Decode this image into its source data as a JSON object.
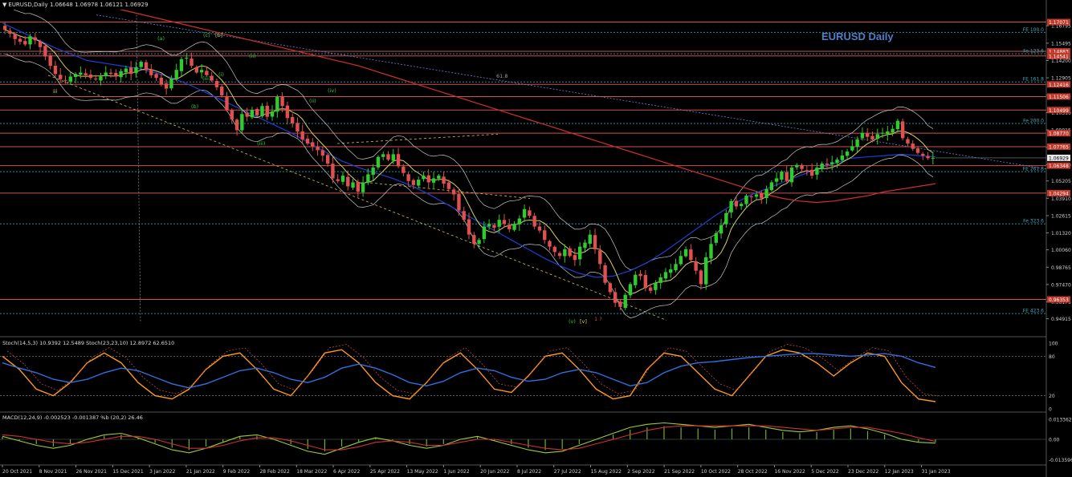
{
  "header": {
    "symbol": "EURUSD,Daily",
    "ohlc": "1.06648 1.06978 1.06121 1.06929"
  },
  "watermark": "EURUSD Daily",
  "colors": {
    "background": "#000000",
    "bull": "#2ecc2e",
    "bear": "#e05050",
    "ma_slow": "#d03030",
    "ma_blue": "#1c3fd6",
    "ma_yellow": "#d6d060",
    "bands": "#c8c8c8",
    "level_line": "#d05050",
    "fib_line": "#2a8a9a"
  },
  "chart_data": [
    {
      "type": "candlestick",
      "title": "EURUSD Daily",
      "xlabel": "",
      "ylabel": "",
      "x_ticks": [
        "20 Oct 2021",
        "8 Nov 2021",
        "26 Nov 2021",
        "15 Dec 2021",
        "3 Jan 2022",
        "21 Jan 2022",
        "9 Feb 2022",
        "28 Feb 2022",
        "18 Mar 2022",
        "6 Apr 2022",
        "25 Apr 2022",
        "13 May 2022",
        "1 Jun 2022",
        "20 Jun 2022",
        "8 Jul 2022",
        "27 Jul 2022",
        "15 Aug 2022",
        "2 Sep 2022",
        "21 Sep 2022",
        "10 Oct 2022",
        "28 Oct 2022",
        "16 Nov 2022",
        "5 Dec 2022",
        "23 Dec 2022",
        "12 Jan 2023",
        "31 Jan 2023"
      ],
      "y_ticks": [
        "1.16795",
        "1.15495",
        "1.14200",
        "1.12905",
        "1.11605",
        "1.10310",
        "1.09015",
        "1.07715",
        "1.06420",
        "1.05205",
        "1.03910",
        "1.02615",
        "1.01320",
        "1.00060",
        "0.98765",
        "0.97470",
        "0.96175",
        "0.94915"
      ],
      "ylim": [
        0.9435,
        1.18
      ],
      "last_price": "1.06929",
      "close_series": [
        1.165,
        1.162,
        1.158,
        1.156,
        1.154,
        1.16,
        1.157,
        1.152,
        1.145,
        1.138,
        1.132,
        1.128,
        1.127,
        1.13,
        1.132,
        1.133,
        1.131,
        1.129,
        1.128,
        1.13,
        1.133,
        1.132,
        1.13,
        1.134,
        1.136,
        1.132,
        1.137,
        1.141,
        1.135,
        1.131,
        1.129,
        1.124,
        1.121,
        1.128,
        1.135,
        1.143,
        1.144,
        1.138,
        1.133,
        1.135,
        1.131,
        1.127,
        1.122,
        1.116,
        1.105,
        1.098,
        1.09,
        1.102,
        1.1,
        1.105,
        1.101,
        1.108,
        1.1,
        1.104,
        1.115,
        1.108,
        1.099,
        1.095,
        1.089,
        1.083,
        1.08,
        1.078,
        1.075,
        1.071,
        1.065,
        1.054,
        1.052,
        1.056,
        1.048,
        1.051,
        1.044,
        1.051,
        1.057,
        1.062,
        1.07,
        1.072,
        1.068,
        1.072,
        1.063,
        1.058,
        1.052,
        1.049,
        1.053,
        1.056,
        1.051,
        1.054,
        1.056,
        1.05,
        1.046,
        1.042,
        1.03,
        1.023,
        1.012,
        1.005,
        1.008,
        1.018,
        1.02,
        1.017,
        1.023,
        1.02,
        1.016,
        1.02,
        1.024,
        1.031,
        1.026,
        1.018,
        1.015,
        1.008,
        1.003,
        0.999,
        0.996,
        1.001,
        0.996,
        0.993,
        1.003,
        1.006,
        1.012,
        1.001,
        0.99,
        0.976,
        0.969,
        0.961,
        0.958,
        0.967,
        0.975,
        0.982,
        0.981,
        0.972,
        0.97,
        0.976,
        0.98,
        0.984,
        0.986,
        0.99,
        0.996,
        1.001,
        0.993,
        0.985,
        0.975,
        0.995,
        1.005,
        1.013,
        1.019,
        1.028,
        1.037,
        1.033,
        1.035,
        1.041,
        1.04,
        1.042,
        1.039,
        1.046,
        1.051,
        1.054,
        1.059,
        1.052,
        1.062,
        1.064,
        1.061,
        1.06,
        1.056,
        1.062,
        1.065,
        1.064,
        1.066,
        1.068,
        1.071,
        1.074,
        1.078,
        1.083,
        1.088,
        1.085,
        1.083,
        1.087,
        1.088,
        1.089,
        1.091,
        1.097,
        1.084,
        1.08,
        1.076,
        1.073,
        1.071,
        1.069,
        1.0693
      ],
      "ma_red": [
        1.195,
        1.193,
        1.191,
        1.189,
        1.187,
        1.185,
        1.183,
        1.18,
        1.177,
        1.174,
        1.171,
        1.168,
        1.165,
        1.162,
        1.159,
        1.156,
        1.153,
        1.15,
        1.147,
        1.144,
        1.141,
        1.138,
        1.134,
        1.13,
        1.126,
        1.122,
        1.118,
        1.114,
        1.11,
        1.106,
        1.102,
        1.098,
        1.094,
        1.09,
        1.086,
        1.082,
        1.078,
        1.074,
        1.07,
        1.066,
        1.062,
        1.058,
        1.054,
        1.05,
        1.046,
        1.042,
        1.039,
        1.037,
        1.036,
        1.037,
        1.039,
        1.041,
        1.044,
        1.046,
        1.048,
        1.05
      ],
      "ma_blue": [
        1.17,
        1.164,
        1.158,
        1.152,
        1.147,
        1.142,
        1.14,
        1.138,
        1.136,
        1.133,
        1.129,
        1.124,
        1.118,
        1.112,
        1.106,
        1.1,
        1.094,
        1.088,
        1.081,
        1.074,
        1.067,
        1.062,
        1.058,
        1.054,
        1.049,
        1.043,
        1.036,
        1.029,
        1.022,
        1.015,
        1.008,
        1.001,
        0.994,
        0.988,
        0.983,
        0.98,
        0.981,
        0.985,
        0.991,
        0.999,
        1.008,
        1.017,
        1.026,
        1.034,
        1.041,
        1.046,
        1.051,
        1.056,
        1.061,
        1.065,
        1.069,
        1.07,
        1.071,
        1.072,
        1.071,
        1.07
      ],
      "h_levels": [
        {
          "price": "1.17071",
          "style": "solid",
          "color": "#d05050"
        },
        {
          "price": "1.16300",
          "label": "FE 100.0",
          "style": "dotted",
          "color": "#2a8a9a"
        },
        {
          "price": "1.14883",
          "style": "solid",
          "color": "#d05050"
        },
        {
          "price": "1.14541",
          "style": "solid",
          "color": "#d05050"
        },
        {
          "price": "1.14700",
          "label": "Fe 123.6",
          "style": "dotted",
          "color": "#2a8a9a"
        },
        {
          "price": "1.12416",
          "style": "solid",
          "color": "#d05050"
        },
        {
          "price": "1.12600",
          "label": "FE 161.8",
          "style": "dotted",
          "color": "#2a8a9a"
        },
        {
          "price": "1.11506",
          "style": "solid",
          "color": "#d05050"
        },
        {
          "price": "1.10499",
          "style": "solid",
          "color": "#d05050"
        },
        {
          "price": "1.09500",
          "label": "Fe 200.0",
          "style": "dotted",
          "color": "#2a8a9a"
        },
        {
          "price": "1.08770",
          "style": "solid",
          "color": "#d05050"
        },
        {
          "price": "1.07765",
          "style": "solid",
          "color": "#d05050"
        },
        {
          "price": "1.06348",
          "style": "solid",
          "color": "#d05050"
        },
        {
          "price": "1.05900",
          "label": "FE 261.8",
          "style": "dotted",
          "color": "#2a8a9a"
        },
        {
          "price": "1.04294",
          "style": "solid",
          "color": "#d05050"
        },
        {
          "price": "1.02000",
          "label": "Fe 323.6",
          "style": "dotted",
          "color": "#2a8a9a"
        },
        {
          "price": "0.96353",
          "style": "solid",
          "color": "#d05050"
        },
        {
          "price": "0.95300",
          "label": "FE 423.6",
          "style": "dotted",
          "color": "#2a8a9a"
        }
      ],
      "annotations": [
        "(a)",
        "(c)",
        "[b]",
        "(ii)",
        "(i)",
        "(iii)",
        "(b)",
        "(iii)",
        "(iv)",
        "(ii)",
        "iii",
        "(v)",
        "[v]",
        "1 ?",
        "61.8"
      ]
    },
    {
      "type": "line",
      "title": "Stoch(14,5,3) 10.9392 12.5489 Stoch(23,23,10) 12.8972 62.6510",
      "y_ticks": [
        "100",
        "80",
        "20",
        "0"
      ],
      "ylim": [
        0,
        100
      ],
      "series": [
        {
          "name": "Stoch(14,5,3)",
          "values": [
            80,
            60,
            30,
            20,
            40,
            70,
            85,
            70,
            40,
            20,
            15,
            30,
            60,
            80,
            85,
            60,
            30,
            20,
            50,
            85,
            90,
            70,
            40,
            20,
            15,
            40,
            70,
            85,
            60,
            30,
            25,
            50,
            80,
            85,
            60,
            30,
            15,
            20,
            60,
            85,
            80,
            55,
            30,
            20,
            50,
            80,
            90,
            85,
            70,
            50,
            70,
            85,
            80,
            40,
            15,
            11
          ]
        },
        {
          "name": "Stoch(23,23,10)",
          "values": [
            70,
            62,
            55,
            45,
            40,
            45,
            55,
            62,
            58,
            48,
            38,
            32,
            38,
            48,
            58,
            62,
            55,
            45,
            40,
            48,
            62,
            68,
            62,
            52,
            40,
            35,
            42,
            55,
            62,
            58,
            48,
            42,
            45,
            55,
            60,
            55,
            45,
            35,
            40,
            55,
            65,
            70,
            72,
            75,
            78,
            80,
            82,
            84,
            84,
            82,
            80,
            82,
            84,
            80,
            70,
            63
          ]
        }
      ]
    },
    {
      "type": "line",
      "title": "MACD(12,24,9) -0.002523 -0.001387 %b (20,2) 26.46",
      "y_ticks": [
        "0.013362",
        "0.00",
        "-0.013596"
      ],
      "ylim": [
        -0.015,
        0.015
      ],
      "series": [
        {
          "name": "MACD",
          "values": [
            0.002,
            -0.001,
            -0.004,
            -0.006,
            -0.004,
            0.0,
            0.003,
            0.004,
            0.001,
            -0.003,
            -0.007,
            -0.009,
            -0.006,
            -0.002,
            0.002,
            0.003,
            0.0,
            -0.004,
            -0.008,
            -0.01,
            -0.006,
            -0.002,
            0.001,
            -0.001,
            -0.004,
            -0.006,
            -0.004,
            0.0,
            0.002,
            -0.001,
            -0.004,
            -0.007,
            -0.009,
            -0.008,
            -0.004,
            0.0,
            0.004,
            0.008,
            0.01,
            0.011,
            0.01,
            0.009,
            0.008,
            0.009,
            0.01,
            0.008,
            0.006,
            0.005,
            0.006,
            0.008,
            0.009,
            0.007,
            0.004,
            0.0,
            -0.002,
            -0.0025
          ]
        },
        {
          "name": "Signal",
          "values": [
            0.003,
            0.002,
            0.0,
            -0.002,
            -0.003,
            -0.002,
            0.0,
            0.002,
            0.002,
            0.0,
            -0.003,
            -0.006,
            -0.006,
            -0.004,
            -0.001,
            0.001,
            0.001,
            -0.001,
            -0.004,
            -0.007,
            -0.007,
            -0.005,
            -0.002,
            -0.001,
            -0.002,
            -0.004,
            -0.004,
            -0.002,
            0.0,
            0.0,
            -0.002,
            -0.004,
            -0.006,
            -0.007,
            -0.006,
            -0.003,
            0.0,
            0.003,
            0.006,
            0.008,
            0.009,
            0.009,
            0.009,
            0.009,
            0.009,
            0.009,
            0.008,
            0.007,
            0.006,
            0.007,
            0.008,
            0.008,
            0.006,
            0.004,
            0.001,
            -0.0014
          ]
        }
      ]
    }
  ]
}
